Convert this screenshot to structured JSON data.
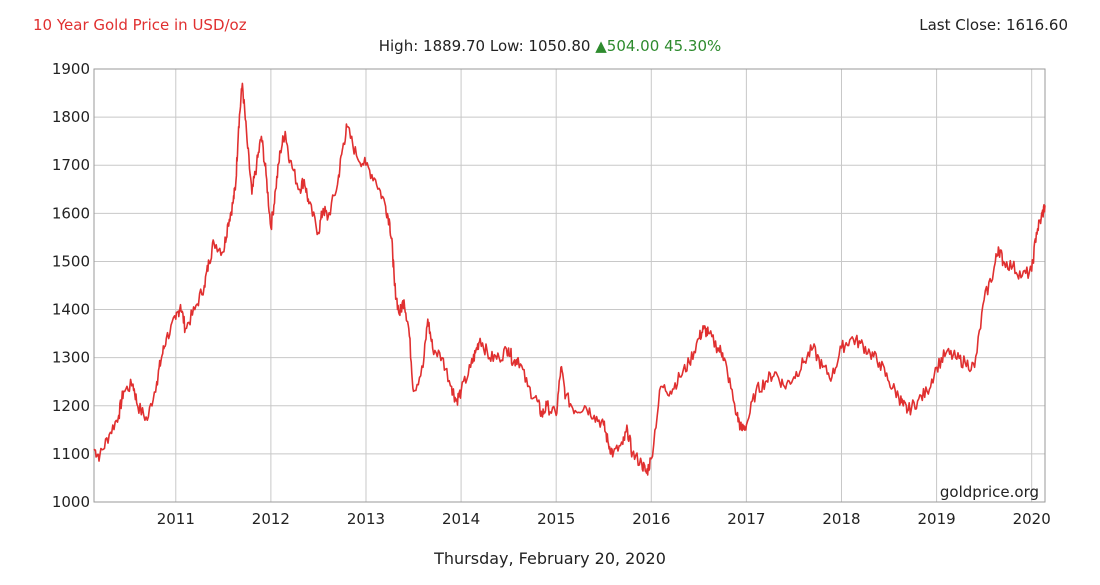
{
  "header": {
    "title": "10 Year Gold Price in USD/oz",
    "last_close_label": "Last Close:",
    "last_close_value": "1616.60",
    "high_label": "High:",
    "high_value": "1889.70",
    "low_label": "Low:",
    "low_value": "1050.80",
    "change_value": "504.00",
    "change_pct": "45.30%",
    "change_arrow": "▲"
  },
  "watermark": "goldprice.org",
  "footer_date": "Thursday, February 20, 2020",
  "colors": {
    "line": "#e03030",
    "title": "#e03030",
    "up": "#2e8b2e",
    "grid": "#c8c8c8"
  },
  "chart_data": {
    "type": "line",
    "title": "10 Year Gold Price in USD/oz",
    "xlabel": "",
    "ylabel": "",
    "ylim": [
      1000,
      1900
    ],
    "xlim": [
      2010.14,
      2020.14
    ],
    "y_ticks": [
      "1000",
      "1100",
      "1200",
      "1300",
      "1400",
      "1500",
      "1600",
      "1700",
      "1800",
      "1900"
    ],
    "x_ticks": [
      "2011",
      "2012",
      "2013",
      "2014",
      "2015",
      "2016",
      "2017",
      "2018",
      "2019",
      "2020"
    ],
    "grid": true,
    "series": [
      {
        "x": [
          2010.14,
          2010.2,
          2010.3,
          2010.4,
          2010.45,
          2010.55,
          2010.6,
          2010.7,
          2010.8,
          2010.85,
          2010.9,
          2011.0,
          2011.05,
          2011.1,
          2011.2,
          2011.3,
          2011.35,
          2011.4,
          2011.5,
          2011.55,
          2011.6,
          2011.63,
          2011.66,
          2011.7,
          2011.75,
          2011.8,
          2011.85,
          2011.9,
          2011.95,
          2012.0,
          2012.05,
          2012.1,
          2012.15,
          2012.2,
          2012.3,
          2012.35,
          2012.4,
          2012.5,
          2012.55,
          2012.6,
          2012.7,
          2012.75,
          2012.8,
          2012.9,
          2013.0,
          2013.1,
          2013.2,
          2013.25,
          2013.28,
          2013.3,
          2013.35,
          2013.4,
          2013.45,
          2013.5,
          2013.6,
          2013.65,
          2013.7,
          2013.8,
          2013.9,
          2013.95,
          2014.0,
          2014.1,
          2014.15,
          2014.2,
          2014.3,
          2014.4,
          2014.5,
          2014.55,
          2014.6,
          2014.7,
          2014.8,
          2014.85,
          2014.9,
          2015.0,
          2015.05,
          2015.1,
          2015.2,
          2015.3,
          2015.4,
          2015.5,
          2015.55,
          2015.6,
          2015.7,
          2015.75,
          2015.8,
          2015.9,
          2015.95,
          2016.0,
          2016.1,
          2016.2,
          2016.3,
          2016.4,
          2016.5,
          2016.55,
          2016.6,
          2016.7,
          2016.75,
          2016.8,
          2016.9,
          2016.95,
          2017.0,
          2017.1,
          2017.2,
          2017.3,
          2017.4,
          2017.5,
          2017.6,
          2017.7,
          2017.8,
          2017.9,
          2018.0,
          2018.1,
          2018.2,
          2018.3,
          2018.4,
          2018.5,
          2018.6,
          2018.65,
          2018.7,
          2018.8,
          2018.9,
          2019.0,
          2019.1,
          2019.2,
          2019.3,
          2019.4,
          2019.5,
          2019.6,
          2019.65,
          2019.7,
          2019.8,
          2019.9,
          2020.0,
          2020.05,
          2020.1,
          2020.14
        ],
        "values": [
          1110,
          1095,
          1140,
          1180,
          1230,
          1245,
          1200,
          1170,
          1250,
          1300,
          1340,
          1380,
          1410,
          1360,
          1400,
          1450,
          1500,
          1540,
          1520,
          1580,
          1620,
          1660,
          1780,
          1870,
          1750,
          1640,
          1700,
          1760,
          1680,
          1570,
          1650,
          1730,
          1770,
          1710,
          1650,
          1670,
          1620,
          1560,
          1610,
          1590,
          1660,
          1730,
          1780,
          1720,
          1700,
          1670,
          1620,
          1580,
          1520,
          1450,
          1390,
          1420,
          1360,
          1230,
          1280,
          1380,
          1320,
          1300,
          1240,
          1210,
          1230,
          1280,
          1310,
          1340,
          1300,
          1300,
          1320,
          1290,
          1300,
          1240,
          1210,
          1180,
          1200,
          1180,
          1280,
          1220,
          1190,
          1200,
          1180,
          1160,
          1120,
          1100,
          1120,
          1150,
          1100,
          1080,
          1060,
          1090,
          1240,
          1230,
          1260,
          1290,
          1340,
          1360,
          1350,
          1320,
          1310,
          1270,
          1180,
          1150,
          1160,
          1230,
          1250,
          1270,
          1240,
          1260,
          1290,
          1320,
          1280,
          1260,
          1320,
          1340,
          1330,
          1310,
          1290,
          1250,
          1220,
          1200,
          1190,
          1210,
          1230,
          1280,
          1310,
          1300,
          1290,
          1280,
          1420,
          1480,
          1530,
          1500,
          1490,
          1470,
          1480,
          1560,
          1590,
          1616.6
        ]
      }
    ]
  }
}
